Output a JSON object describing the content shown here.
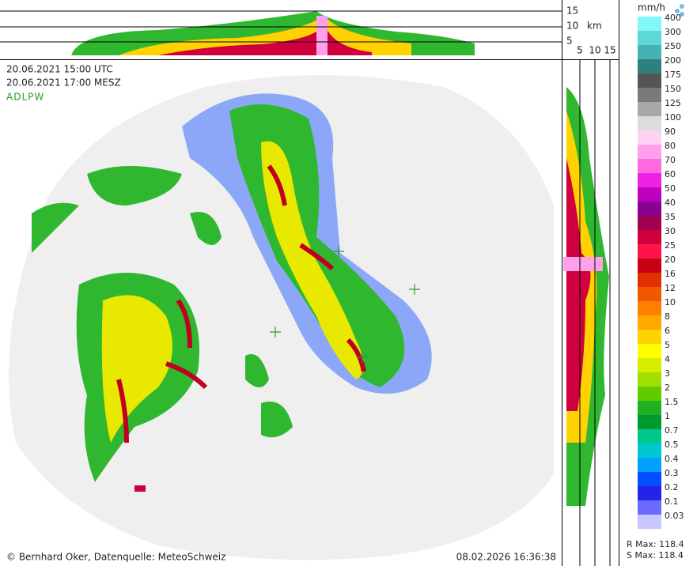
{
  "header": {
    "time_utc": "20.06.2021 15:00 UTC",
    "time_local": "20.06.2021 17:00 MESZ",
    "product": "ADLPW"
  },
  "footer": {
    "credit": "© Bernhard Oker, Datenquelle: MeteoSchweiz",
    "timestamp": "08.02.2026 16:36:38"
  },
  "top_profile": {
    "labels": [
      "15",
      "10",
      "5"
    ],
    "unit": "km"
  },
  "side_profile": {
    "labels": [
      "5",
      "10",
      "15"
    ]
  },
  "legend": {
    "unit": "mm/h",
    "entries": [
      {
        "label": "400",
        "color": "#80f8f8"
      },
      {
        "label": "300",
        "color": "#5cd8d8"
      },
      {
        "label": "250",
        "color": "#44b2b2"
      },
      {
        "label": "200",
        "color": "#2f7f7f"
      },
      {
        "label": "175",
        "color": "#555555"
      },
      {
        "label": "150",
        "color": "#7a7a7a"
      },
      {
        "label": "125",
        "color": "#a8a8a8"
      },
      {
        "label": "100",
        "color": "#dcdcdc"
      },
      {
        "label": "90",
        "color": "#ffd2f2"
      },
      {
        "label": "80",
        "color": "#ffa0ea"
      },
      {
        "label": "70",
        "color": "#ff6ae0"
      },
      {
        "label": "60",
        "color": "#f020e0"
      },
      {
        "label": "50",
        "color": "#c000c0"
      },
      {
        "label": "40",
        "color": "#8a0090"
      },
      {
        "label": "35",
        "color": "#a00050"
      },
      {
        "label": "30",
        "color": "#d00040"
      },
      {
        "label": "25",
        "color": "#ff1448"
      },
      {
        "label": "20",
        "color": "#c80014"
      },
      {
        "label": "16",
        "color": "#e03000"
      },
      {
        "label": "12",
        "color": "#f05800"
      },
      {
        "label": "10",
        "color": "#ff8000"
      },
      {
        "label": "8",
        "color": "#ffa800"
      },
      {
        "label": "6",
        "color": "#ffd200"
      },
      {
        "label": "5",
        "color": "#ffff00"
      },
      {
        "label": "4",
        "color": "#d4f000"
      },
      {
        "label": "3",
        "color": "#a0e000"
      },
      {
        "label": "2",
        "color": "#60cc00"
      },
      {
        "label": "1.5",
        "color": "#20b020"
      },
      {
        "label": "1",
        "color": "#009a30"
      },
      {
        "label": "0.7",
        "color": "#00c88c"
      },
      {
        "label": "0.5",
        "color": "#00c8d0"
      },
      {
        "label": "0.4",
        "color": "#00a0ff"
      },
      {
        "label": "0.3",
        "color": "#0050ff"
      },
      {
        "label": "0.2",
        "color": "#2424e8"
      },
      {
        "label": "0.1",
        "color": "#6a6aff"
      },
      {
        "label": "0.03",
        "color": "#c8c8ff"
      }
    ]
  },
  "stats": {
    "r_max": "R Max: 118.4",
    "s_max": "S Max: 118.4"
  }
}
